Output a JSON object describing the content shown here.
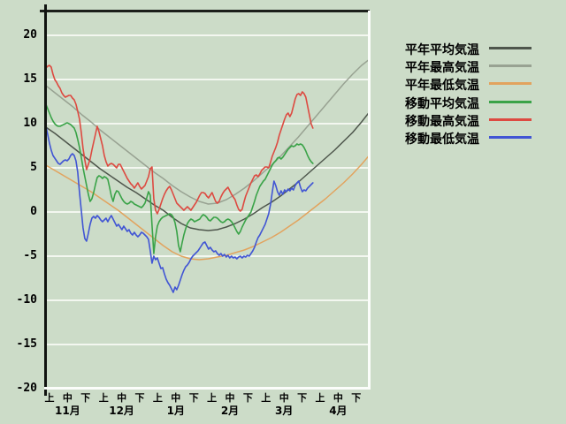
{
  "page": {
    "background": "#ccdcc8"
  },
  "chart_data": {
    "type": "line",
    "title": "",
    "grid": "horizontal",
    "legend_position": "right",
    "y_axis": {
      "ticks": [
        "20",
        "15",
        "10",
        "5",
        "0",
        "-5",
        "-10",
        "-15",
        "-20"
      ],
      "min": -20,
      "max": 22.8,
      "unit": "degC"
    },
    "x_axis": {
      "periods": [
        "上",
        "中",
        "下"
      ],
      "months": [
        "11月",
        "12月",
        "1月",
        "2月",
        "3月",
        "4月"
      ],
      "note": "t units: 0 = 11月上 tick, 1 tick per 旬 (10 days), 17 = 4月下"
    },
    "series": [
      {
        "name": "平年平均気温",
        "color": "#4e564c",
        "style": "smooth",
        "t0": -0.2,
        "dt": 0.5,
        "values": [
          9.6,
          8.9,
          8.1,
          7.3,
          6.5,
          5.7,
          4.9,
          4.2,
          3.5,
          2.8,
          2.2,
          1.5,
          0.8,
          0.2,
          -0.6,
          -1.3,
          -1.8,
          -2.0,
          -2.1,
          -2.0,
          -1.7,
          -1.3,
          -0.8,
          -0.2,
          0.5,
          1.1,
          1.8,
          2.6,
          3.4,
          4.3,
          5.2,
          6.1,
          7.0,
          8.0,
          9.0,
          10.2,
          11.5
        ]
      },
      {
        "name": "平年最高気温",
        "color": "#98a292",
        "style": "smooth",
        "t0": -0.2,
        "dt": 0.5,
        "values": [
          14.3,
          13.5,
          12.7,
          11.9,
          11.0,
          10.2,
          9.3,
          8.5,
          7.7,
          6.9,
          6.1,
          5.3,
          4.5,
          3.8,
          3.0,
          2.3,
          1.7,
          1.2,
          0.9,
          1.0,
          1.4,
          2.0,
          2.7,
          3.5,
          4.4,
          5.3,
          6.3,
          7.4,
          8.5,
          9.7,
          10.9,
          12.1,
          13.3,
          14.5,
          15.6,
          16.6,
          17.4
        ]
      },
      {
        "name": "平年最低気温",
        "color": "#e2a35e",
        "style": "smooth",
        "t0": -0.2,
        "dt": 0.5,
        "values": [
          5.3,
          4.7,
          4.1,
          3.5,
          2.9,
          2.3,
          1.6,
          0.9,
          0.2,
          -0.6,
          -1.4,
          -2.2,
          -3.0,
          -3.8,
          -4.5,
          -5.0,
          -5.3,
          -5.4,
          -5.3,
          -5.1,
          -4.9,
          -4.6,
          -4.3,
          -3.9,
          -3.4,
          -2.9,
          -2.3,
          -1.6,
          -0.9,
          -0.1,
          0.7,
          1.5,
          2.4,
          3.3,
          4.3,
          5.4,
          6.6
        ]
      },
      {
        "name": "移動平均気温",
        "color": "#3aa348",
        "style": "daily",
        "t0": -0.2,
        "dt": 0.098,
        "values": [
          12.2,
          11.7,
          11.2,
          10.7,
          10.3,
          10.0,
          9.8,
          9.7,
          9.7,
          9.8,
          9.9,
          10.0,
          10.1,
          10.0,
          9.9,
          9.7,
          9.5,
          9.0,
          8.2,
          7.3,
          6.2,
          5.0,
          4.0,
          3.0,
          2.0,
          1.2,
          1.5,
          2.2,
          3.1,
          3.9,
          4.1,
          4.0,
          3.8,
          4.0,
          3.9,
          3.7,
          2.8,
          1.8,
          1.2,
          2.0,
          2.4,
          2.3,
          1.9,
          1.5,
          1.2,
          1.0,
          0.9,
          1.0,
          1.2,
          1.1,
          0.9,
          0.8,
          0.7,
          0.6,
          0.5,
          0.7,
          1.0,
          1.6,
          2.3,
          1.9,
          -1.5,
          -4.7,
          -2.8,
          -1.6,
          -1.1,
          -0.8,
          -0.6,
          -0.5,
          -0.4,
          -0.3,
          -0.2,
          -0.3,
          -0.6,
          -1.2,
          -2.2,
          -3.8,
          -4.5,
          -3.5,
          -2.6,
          -1.9,
          -1.3,
          -1.0,
          -0.8,
          -0.9,
          -1.1,
          -1.0,
          -0.9,
          -0.8,
          -0.5,
          -0.3,
          -0.4,
          -0.6,
          -0.9,
          -1.0,
          -0.8,
          -0.6,
          -0.6,
          -0.7,
          -0.9,
          -1.1,
          -1.2,
          -1.1,
          -0.9,
          -0.8,
          -0.9,
          -1.1,
          -1.4,
          -1.8,
          -2.2,
          -2.5,
          -2.2,
          -1.7,
          -1.3,
          -0.9,
          -0.6,
          -0.3,
          0.0,
          0.6,
          1.2,
          1.9,
          2.4,
          2.9,
          3.2,
          3.5,
          3.7,
          4.1,
          4.5,
          4.9,
          5.3,
          5.6,
          5.8,
          6.1,
          6.2,
          6.0,
          6.2,
          6.5,
          6.8,
          7.1,
          7.3,
          7.5,
          7.4,
          7.5,
          7.7,
          7.6,
          7.7,
          7.6,
          7.3,
          6.9,
          6.4,
          6.0,
          5.7,
          5.5
        ]
      },
      {
        "name": "移動最高気温",
        "color": "#dd4a41",
        "style": "daily",
        "t0": -0.2,
        "dt": 0.098,
        "values": [
          16.3,
          16.5,
          16.6,
          16.4,
          15.6,
          15.0,
          14.7,
          14.3,
          14.0,
          13.5,
          13.2,
          13.0,
          13.1,
          13.2,
          13.2,
          12.9,
          12.7,
          12.2,
          11.4,
          10.5,
          9.0,
          7.2,
          5.9,
          4.8,
          5.4,
          6.0,
          7.0,
          7.9,
          8.8,
          9.7,
          9.1,
          8.3,
          7.5,
          6.4,
          5.7,
          5.2,
          5.4,
          5.5,
          5.4,
          5.2,
          5.0,
          5.4,
          5.4,
          5.0,
          4.6,
          4.2,
          3.8,
          3.5,
          3.2,
          3.0,
          2.7,
          3.0,
          3.3,
          2.9,
          2.6,
          2.8,
          3.0,
          3.5,
          4.0,
          4.9,
          5.1,
          1.5,
          0.2,
          -0.2,
          0.3,
          0.9,
          1.5,
          2.0,
          2.4,
          2.7,
          2.9,
          2.5,
          2.0,
          1.5,
          1.0,
          0.8,
          0.6,
          0.4,
          0.2,
          0.4,
          0.6,
          0.4,
          0.2,
          0.5,
          0.8,
          1.1,
          1.5,
          1.9,
          2.2,
          2.2,
          2.1,
          1.8,
          1.6,
          1.9,
          2.2,
          1.7,
          1.2,
          1.0,
          1.2,
          1.7,
          2.1,
          2.4,
          2.6,
          2.8,
          2.4,
          2.0,
          1.7,
          1.4,
          0.8,
          0.3,
          0.1,
          0.3,
          1.1,
          1.8,
          2.3,
          2.8,
          3.3,
          3.7,
          4.1,
          4.2,
          4.0,
          4.3,
          4.7,
          4.9,
          5.1,
          5.1,
          5.0,
          5.6,
          6.3,
          6.8,
          7.3,
          7.9,
          8.7,
          9.3,
          9.9,
          10.5,
          11.0,
          11.2,
          10.8,
          11.2,
          12.0,
          12.8,
          13.3,
          13.4,
          13.2,
          13.6,
          13.4,
          13.0,
          12.0,
          11.0,
          10.0,
          9.5
        ]
      },
      {
        "name": "移動最低気温",
        "color": "#4155d4",
        "style": "daily",
        "t0": -0.2,
        "dt": 0.098,
        "values": [
          9.7,
          8.8,
          7.8,
          7.0,
          6.4,
          6.1,
          5.8,
          5.5,
          5.4,
          5.6,
          5.8,
          5.9,
          5.8,
          6.0,
          6.4,
          6.6,
          6.4,
          5.8,
          4.5,
          2.2,
          0.2,
          -1.8,
          -3.0,
          -3.3,
          -2.4,
          -1.4,
          -0.7,
          -0.5,
          -0.7,
          -0.4,
          -0.6,
          -0.9,
          -1.1,
          -0.9,
          -0.7,
          -1.1,
          -0.7,
          -0.4,
          -0.8,
          -1.2,
          -1.6,
          -1.4,
          -1.7,
          -2.0,
          -1.6,
          -1.9,
          -2.2,
          -2.0,
          -2.4,
          -2.6,
          -2.3,
          -2.6,
          -2.8,
          -2.6,
          -2.3,
          -2.4,
          -2.6,
          -2.8,
          -3.1,
          -4.4,
          -5.8,
          -5.0,
          -5.4,
          -5.2,
          -5.8,
          -6.4,
          -6.3,
          -7.0,
          -7.6,
          -8.0,
          -8.3,
          -8.7,
          -9.1,
          -8.5,
          -8.8,
          -8.3,
          -7.7,
          -7.1,
          -6.6,
          -6.2,
          -6.0,
          -5.7,
          -5.3,
          -5.0,
          -4.8,
          -4.6,
          -4.4,
          -4.1,
          -3.8,
          -3.5,
          -3.4,
          -3.8,
          -4.2,
          -4.0,
          -4.3,
          -4.5,
          -4.4,
          -4.7,
          -4.9,
          -4.7,
          -5.0,
          -4.8,
          -5.1,
          -4.9,
          -5.2,
          -5.0,
          -5.2,
          -5.1,
          -5.3,
          -5.1,
          -5.0,
          -5.2,
          -5.0,
          -5.1,
          -4.9,
          -5.0,
          -4.7,
          -4.4,
          -4.0,
          -3.4,
          -2.9,
          -2.6,
          -2.2,
          -1.8,
          -1.4,
          -0.8,
          -0.2,
          0.8,
          2.2,
          3.5,
          3.0,
          2.3,
          1.9,
          2.4,
          2.0,
          2.5,
          2.3,
          2.6,
          2.4,
          2.7,
          2.5,
          3.0,
          3.3,
          3.5,
          2.8,
          2.3,
          2.5,
          2.4,
          2.7,
          2.9,
          3.1,
          3.3
        ]
      }
    ]
  }
}
